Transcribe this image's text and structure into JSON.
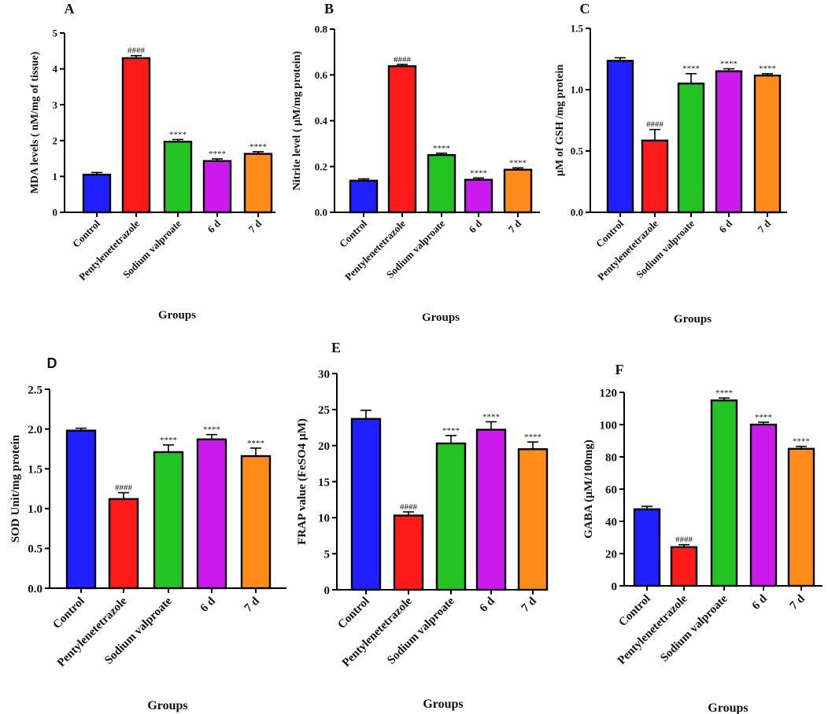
{
  "chart_data": [
    {
      "panel": "A",
      "type": "bar",
      "categories": [
        "Control",
        "Pentylenetetrazole",
        "Sodium valproate",
        "6 d",
        "7 d"
      ],
      "values": [
        1.05,
        4.3,
        1.97,
        1.43,
        1.63
      ],
      "errors": [
        0.06,
        0.07,
        0.06,
        0.06,
        0.06
      ],
      "annotations": [
        "",
        "####",
        "****",
        "****",
        "****"
      ],
      "colors": [
        "#1f1fff",
        "#ff1a1a",
        "#22c322",
        "#cc1aee",
        "#ff8c1a"
      ],
      "ylabel": "MDA levels ( nM/mg of tissue)",
      "xlabel": "Groups",
      "ylim": [
        0,
        5
      ],
      "yticks": [
        0,
        1,
        2,
        3,
        4,
        5
      ],
      "ytick_labels": [
        "0",
        "1",
        "2",
        "3",
        "4",
        "5"
      ]
    },
    {
      "panel": "B",
      "type": "bar",
      "categories": [
        "Control",
        "Pentylenetetrazole",
        "Sodium valproate",
        "6 d",
        "7 d"
      ],
      "values": [
        0.138,
        0.638,
        0.25,
        0.142,
        0.186
      ],
      "errors": [
        0.008,
        0.008,
        0.008,
        0.008,
        0.008
      ],
      "annotations": [
        "",
        "####",
        "****",
        "****",
        "****"
      ],
      "colors": [
        "#1f1fff",
        "#ff1a1a",
        "#22c322",
        "#cc1aee",
        "#ff8c1a"
      ],
      "ylabel": "Nitrite level ( µM/mg protein)",
      "xlabel": "Groups",
      "ylim": [
        0,
        0.8
      ],
      "yticks": [
        0,
        0.2,
        0.4,
        0.6,
        0.8
      ],
      "ytick_labels": [
        "0.0",
        "0.2",
        "0.4",
        "0.6",
        "0.8"
      ]
    },
    {
      "panel": "C",
      "type": "bar",
      "categories": [
        "Control",
        "Pentylenetetrazole",
        "Sodium valproate",
        "6 d",
        "7 d"
      ],
      "values": [
        1.235,
        0.585,
        1.05,
        1.15,
        1.115
      ],
      "errors": [
        0.025,
        0.09,
        0.08,
        0.02,
        0.015
      ],
      "annotations": [
        "",
        "####",
        "****",
        "****",
        "****"
      ],
      "colors": [
        "#1f1fff",
        "#ff1a1a",
        "#22c322",
        "#cc1aee",
        "#ff8c1a"
      ],
      "ylabel": "µM of GSH /mg protein",
      "xlabel": "Groups",
      "ylim": [
        0,
        1.5
      ],
      "yticks": [
        0,
        0.5,
        1.0,
        1.5
      ],
      "ytick_labels": [
        "0.0",
        "0.5",
        "1.0",
        "1.5"
      ]
    },
    {
      "panel": "D",
      "type": "bar",
      "categories": [
        "Control",
        "Pentylenetetrazole",
        "Sodium valproate",
        "6 d",
        "7 d"
      ],
      "values": [
        1.98,
        1.12,
        1.71,
        1.87,
        1.66
      ],
      "errors": [
        0.03,
        0.08,
        0.09,
        0.06,
        0.1
      ],
      "annotations": [
        "",
        "####",
        "****",
        "****",
        "****"
      ],
      "colors": [
        "#1f1fff",
        "#ff1a1a",
        "#22c322",
        "#cc1aee",
        "#ff8c1a"
      ],
      "ylabel": "SOD Unit/mg protein",
      "xlabel": "Groups",
      "ylim": [
        0,
        2.5
      ],
      "yticks": [
        0,
        0.5,
        1.0,
        1.5,
        2.0,
        2.5
      ],
      "ytick_labels": [
        "0.0",
        "0.5",
        "1.0",
        "1.5",
        "2.0",
        "2.5"
      ]
    },
    {
      "panel": "E",
      "type": "bar",
      "categories": [
        "Control",
        "Pentylenetetrazole",
        "Sodium valproate",
        "6 d",
        "7 d"
      ],
      "values": [
        23.7,
        10.3,
        20.3,
        22.2,
        19.5
      ],
      "errors": [
        1.2,
        0.5,
        1.1,
        1.1,
        1.0
      ],
      "annotations": [
        "",
        "####",
        "****",
        "****",
        "****"
      ],
      "colors": [
        "#1f1fff",
        "#ff1a1a",
        "#22c322",
        "#cc1aee",
        "#ff8c1a"
      ],
      "ylabel": "FRAP value (FeSO4 µM)",
      "xlabel": "Groups",
      "ylim": [
        0,
        30
      ],
      "yticks": [
        0,
        5,
        10,
        15,
        20,
        25,
        30
      ],
      "ytick_labels": [
        "0",
        "5",
        "10",
        "15",
        "20",
        "25",
        "30"
      ]
    },
    {
      "panel": "F",
      "type": "bar",
      "categories": [
        "Control",
        "Pentylenetetrazole",
        "Sodium valproate",
        "6 d",
        "7 d"
      ],
      "values": [
        47.5,
        24,
        115,
        100,
        85
      ],
      "errors": [
        1.8,
        1.5,
        1.5,
        1.5,
        1.5
      ],
      "annotations": [
        "",
        "####",
        "****",
        "****",
        "****"
      ],
      "colors": [
        "#1f1fff",
        "#ff1a1a",
        "#22c322",
        "#cc1aee",
        "#ff8c1a"
      ],
      "ylabel": "GABA (µM/100mg)",
      "xlabel": "Groups",
      "ylim": [
        0,
        120
      ],
      "yticks": [
        0,
        20,
        40,
        60,
        80,
        100,
        120
      ],
      "ytick_labels": [
        "0",
        "20",
        "40",
        "60",
        "80",
        "100",
        "120"
      ]
    }
  ]
}
